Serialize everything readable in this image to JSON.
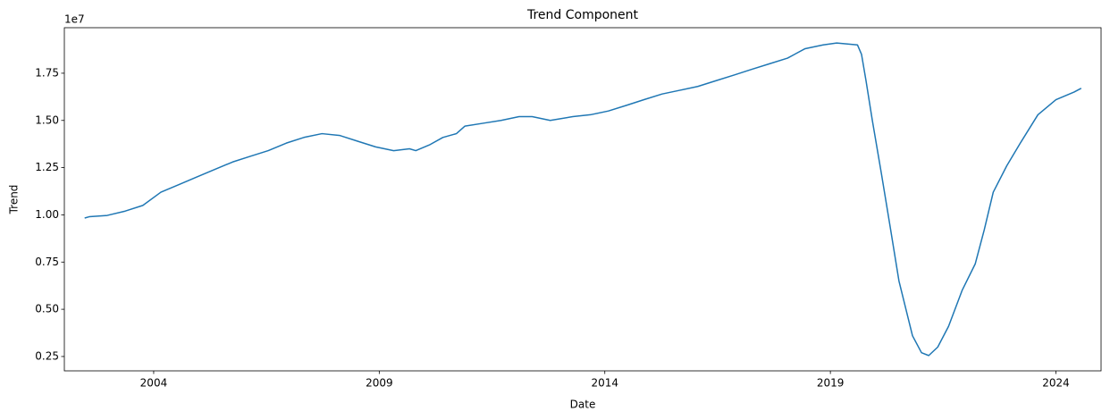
{
  "chart_data": {
    "type": "line",
    "title": "Trend Component",
    "x_label": "Date",
    "y_label": "Trend",
    "y_offset_label": "1e7",
    "x": [
      2002.47,
      2002.57,
      2002.97,
      2003.37,
      2003.76,
      2004.16,
      2004.56,
      2004.95,
      2005.35,
      2005.75,
      2006.14,
      2006.54,
      2006.94,
      2007.33,
      2007.73,
      2008.13,
      2008.52,
      2008.92,
      2009.32,
      2009.67,
      2009.81,
      2010.11,
      2010.41,
      2010.71,
      2010.9,
      2011.3,
      2011.7,
      2012.1,
      2012.39,
      2012.79,
      2013.29,
      2013.68,
      2014.08,
      2014.48,
      2014.87,
      2015.27,
      2015.67,
      2016.06,
      2016.46,
      2016.86,
      2017.25,
      2017.65,
      2018.05,
      2018.44,
      2018.84,
      2019.14,
      2019.6,
      2019.69,
      2019.79,
      2019.93,
      2020.13,
      2020.33,
      2020.52,
      2020.82,
      2021.02,
      2021.18,
      2021.38,
      2021.62,
      2021.92,
      2022.21,
      2022.41,
      2022.61,
      2022.91,
      2023.21,
      2023.6,
      2024.0,
      2024.4,
      2024.56
    ],
    "series": [
      {
        "name": "Trend",
        "color": "#1f77b4",
        "values": [
          0.983,
          0.99,
          0.997,
          1.02,
          1.05,
          1.12,
          1.16,
          1.2,
          1.24,
          1.28,
          1.31,
          1.34,
          1.38,
          1.41,
          1.43,
          1.42,
          1.39,
          1.36,
          1.34,
          1.35,
          1.34,
          1.37,
          1.41,
          1.43,
          1.47,
          1.485,
          1.5,
          1.52,
          1.52,
          1.5,
          1.52,
          1.53,
          1.55,
          1.58,
          1.61,
          1.64,
          1.66,
          1.68,
          1.71,
          1.74,
          1.77,
          1.8,
          1.83,
          1.88,
          1.9,
          1.91,
          1.9,
          1.85,
          1.71,
          1.5,
          1.22,
          0.93,
          0.65,
          0.36,
          0.27,
          0.255,
          0.3,
          0.41,
          0.6,
          0.74,
          0.92,
          1.12,
          1.26,
          1.38,
          1.53,
          1.61,
          1.65,
          1.67
        ]
      }
    ],
    "xlim": [
      2002.02,
      2025.0
    ],
    "xticks": [
      2004,
      2009,
      2014,
      2019,
      2024
    ],
    "ylim": [
      0.174,
      1.991
    ],
    "yticks": [
      0.25,
      {
        "value": 0.5,
        "label": "0.50"
      },
      0.75,
      {
        "value": 1.0,
        "label": "1.00"
      },
      1.25,
      {
        "value": 1.5,
        "label": "1.50"
      },
      1.75
    ],
    "grid": false
  }
}
